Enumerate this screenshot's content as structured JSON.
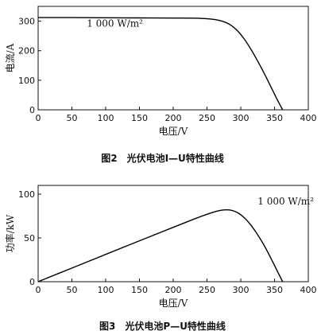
{
  "figures": [
    {
      "caption": "图2　光伏电池I—U特性曲线",
      "annotation": "1 000 W/m²"
    },
    {
      "caption": "图3　光伏电池P—U特性曲线",
      "annotation": "1 000 W/m²"
    }
  ],
  "chart_data": [
    {
      "type": "line",
      "title": "",
      "xlabel": "电压/V",
      "ylabel": "电流/A",
      "xlim": [
        0,
        400
      ],
      "ylim": [
        0,
        350
      ],
      "xticks": [
        "0",
        "50",
        "100",
        "150",
        "200",
        "250",
        "300",
        "350",
        "400"
      ],
      "yticks": [
        "0",
        "100",
        "200",
        "300"
      ],
      "grid": false,
      "series": [
        {
          "name": "1 000 W/m²",
          "x": [
            0,
            50,
            100,
            150,
            200,
            230,
            250,
            265,
            275,
            285,
            295,
            305,
            315,
            325,
            335,
            345,
            355,
            362
          ],
          "y": [
            312,
            312,
            311.5,
            311,
            310.5,
            310,
            308,
            304,
            298,
            287,
            268,
            240,
            205,
            165,
            122,
            76,
            30,
            0
          ]
        }
      ]
    },
    {
      "type": "line",
      "title": "",
      "xlabel": "电压/V",
      "ylabel": "功率/kW",
      "xlim": [
        0,
        400
      ],
      "ylim": [
        0,
        110
      ],
      "xticks": [
        "0",
        "50",
        "100",
        "150",
        "200",
        "250",
        "300",
        "350",
        "400"
      ],
      "yticks": [
        "0",
        "50",
        "100"
      ],
      "grid": false,
      "series": [
        {
          "name": "1 000 W/m²",
          "x": [
            0,
            50,
            100,
            150,
            200,
            230,
            250,
            265,
            275,
            285,
            295,
            305,
            315,
            325,
            335,
            345,
            355,
            362
          ],
          "y": [
            0,
            15.6,
            31.2,
            46.7,
            62.1,
            71.3,
            77,
            80.6,
            82,
            81.8,
            79,
            73.2,
            64.6,
            53.6,
            40.9,
            26.2,
            10.7,
            0
          ]
        }
      ]
    }
  ]
}
